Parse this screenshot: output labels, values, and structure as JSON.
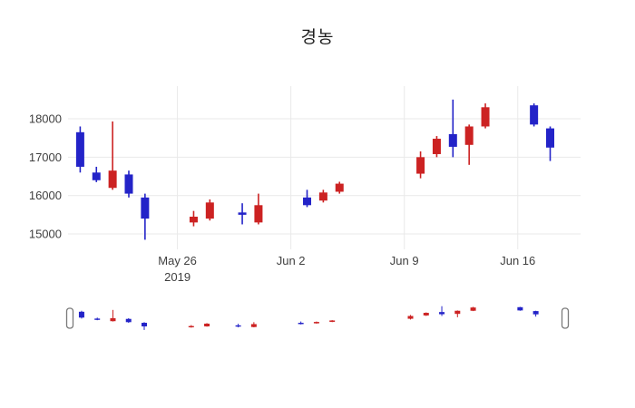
{
  "chart_data": {
    "type": "candlestick",
    "title": "경농",
    "x_axis": {
      "range": [
        "2019-05-19T06:00:00Z",
        "2019-06-19T21:00:00Z"
      ],
      "ticks": [
        {
          "date": "2019-05-26",
          "lines": [
            "May 26",
            "2019"
          ]
        },
        {
          "date": "2019-06-02",
          "lines": [
            "Jun 2"
          ]
        },
        {
          "date": "2019-06-09",
          "lines": [
            "Jun 9"
          ]
        },
        {
          "date": "2019-06-16",
          "lines": [
            "Jun 16"
          ]
        }
      ]
    },
    "y_axis": {
      "range": [
        14600,
        18850
      ],
      "ticks": [
        15000,
        16000,
        17000,
        18000
      ]
    },
    "colors": {
      "up": "#cc2222",
      "down": "#2323c8",
      "grid": "#e9e9e9",
      "tick_text": "#3f3f3f",
      "background": "#ffffff",
      "handle_fill": "#ffffff",
      "handle_stroke": "#7a7a7a"
    },
    "legend": "none",
    "grid_on": true,
    "rangeslider": {
      "enabled": true
    },
    "candles": [
      {
        "date": "2019-05-20",
        "open": 17650,
        "high": 17800,
        "low": 16600,
        "close": 16750
      },
      {
        "date": "2019-05-21",
        "open": 16600,
        "high": 16750,
        "low": 16350,
        "close": 16400
      },
      {
        "date": "2019-05-22",
        "open": 16200,
        "high": 17930,
        "low": 16150,
        "close": 16650
      },
      {
        "date": "2019-05-23",
        "open": 16550,
        "high": 16650,
        "low": 15950,
        "close": 16050
      },
      {
        "date": "2019-05-24",
        "open": 15950,
        "high": 16050,
        "low": 14850,
        "close": 15400
      },
      {
        "date": "2019-05-27",
        "open": 15300,
        "high": 15600,
        "low": 15200,
        "close": 15450
      },
      {
        "date": "2019-05-28",
        "open": 15400,
        "high": 15900,
        "low": 15350,
        "close": 15820
      },
      {
        "date": "2019-05-30",
        "open": 15560,
        "high": 15800,
        "low": 15250,
        "close": 15500
      },
      {
        "date": "2019-05-31",
        "open": 15300,
        "high": 16050,
        "low": 15250,
        "close": 15750
      },
      {
        "date": "2019-06-03",
        "open": 15950,
        "high": 16150,
        "low": 15700,
        "close": 15750
      },
      {
        "date": "2019-06-04",
        "open": 15870,
        "high": 16150,
        "low": 15820,
        "close": 16080
      },
      {
        "date": "2019-06-05",
        "open": 16100,
        "high": 16360,
        "low": 16050,
        "close": 16310
      },
      {
        "date": "2019-06-10",
        "open": 16570,
        "high": 17150,
        "low": 16450,
        "close": 17000
      },
      {
        "date": "2019-06-11",
        "open": 17080,
        "high": 17550,
        "low": 17000,
        "close": 17480
      },
      {
        "date": "2019-06-12",
        "open": 17600,
        "high": 18500,
        "low": 17000,
        "close": 17270
      },
      {
        "date": "2019-06-13",
        "open": 17320,
        "high": 17850,
        "low": 16800,
        "close": 17800
      },
      {
        "date": "2019-06-14",
        "open": 17800,
        "high": 18400,
        "low": 17750,
        "close": 18300
      },
      {
        "date": "2019-06-17",
        "open": 18350,
        "high": 18400,
        "low": 17800,
        "close": 17850
      },
      {
        "date": "2019-06-18",
        "open": 17750,
        "high": 17800,
        "low": 16900,
        "close": 17250
      }
    ]
  }
}
